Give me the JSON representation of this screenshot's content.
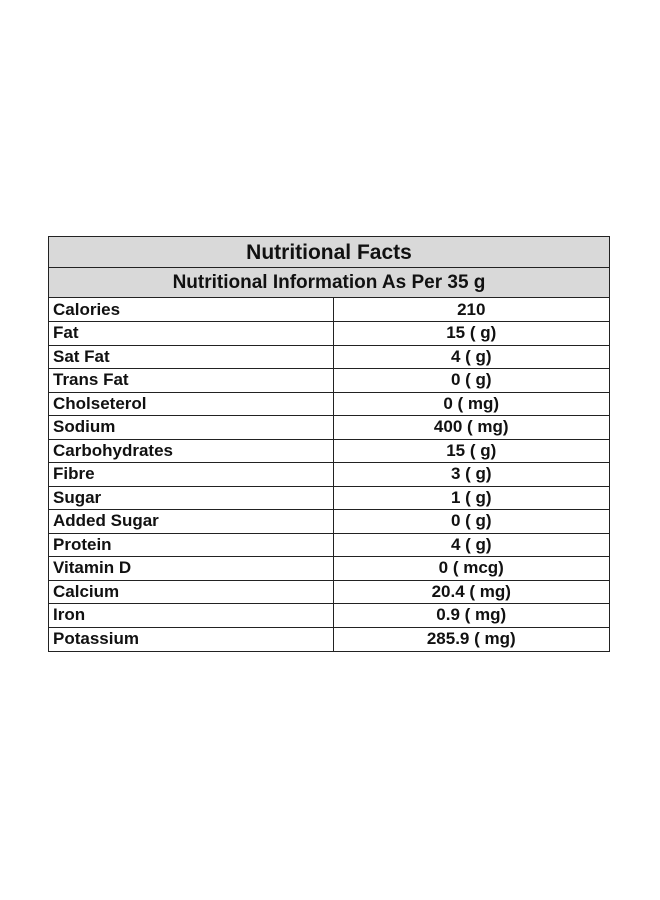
{
  "title": "Nutritional Facts",
  "subtitle": "Nutritional Information As Per 35 g",
  "rows": [
    {
      "nutrient": "Calories",
      "amount": "210"
    },
    {
      "nutrient": "Fat",
      "amount": "15 ( g)"
    },
    {
      "nutrient": "Sat Fat",
      "amount": "4 ( g)"
    },
    {
      "nutrient": "Trans Fat",
      "amount": "0 ( g)"
    },
    {
      "nutrient": "Cholseterol",
      "amount": "0 ( mg)"
    },
    {
      "nutrient": "Sodium",
      "amount": "400 ( mg)"
    },
    {
      "nutrient": "Carbohydrates",
      "amount": "15 ( g)"
    },
    {
      "nutrient": "Fibre",
      "amount": "3 ( g)"
    },
    {
      "nutrient": "Sugar",
      "amount": "1 ( g)"
    },
    {
      "nutrient": "Added Sugar",
      "amount": "0 ( g)"
    },
    {
      "nutrient": "Protein",
      "amount": "4 ( g)"
    },
    {
      "nutrient": "Vitamin D",
      "amount": "0 ( mcg)"
    },
    {
      "nutrient": "Calcium",
      "amount": "20.4 ( mg)"
    },
    {
      "nutrient": "Iron",
      "amount": "0.9 ( mg)"
    },
    {
      "nutrient": "Potassium",
      "amount": "285.9 ( mg)"
    }
  ],
  "colors": {
    "header_background": "#d9d9d9",
    "border": "#222222",
    "text": "#111111"
  }
}
